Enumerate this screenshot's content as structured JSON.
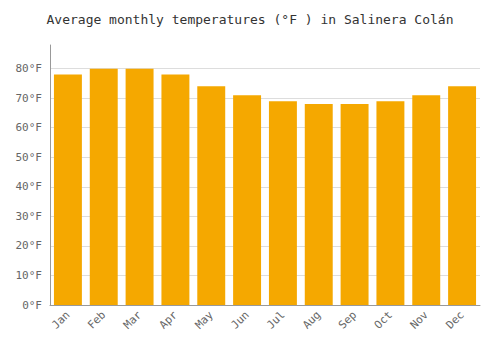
{
  "chart_data": {
    "type": "bar",
    "title": "Average monthly temperatures (°F ) in Salinera Colán",
    "categories": [
      "Jan",
      "Feb",
      "Mar",
      "Apr",
      "May",
      "Jun",
      "Jul",
      "Aug",
      "Sep",
      "Oct",
      "Nov",
      "Dec"
    ],
    "values": [
      78,
      80,
      80,
      78,
      74,
      71,
      69,
      68,
      68,
      69,
      71,
      74
    ],
    "color": "#F5A800",
    "ylim": [
      0,
      88
    ],
    "yticks": [
      {
        "value": 0,
        "label": "0°F"
      },
      {
        "value": 10,
        "label": "10°F"
      },
      {
        "value": 20,
        "label": "20°F"
      },
      {
        "value": 30,
        "label": "30°F"
      },
      {
        "value": 40,
        "label": "40°F"
      },
      {
        "value": 50,
        "label": "50°F"
      },
      {
        "value": 60,
        "label": "60°F"
      },
      {
        "value": 70,
        "label": "70°F"
      },
      {
        "value": 80,
        "label": "80°F"
      }
    ],
    "grid": true
  }
}
